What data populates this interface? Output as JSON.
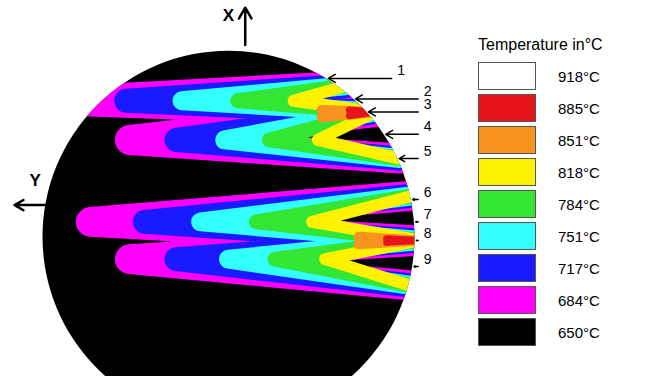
{
  "chart_data": {
    "type": "thermal_image",
    "xlabel": "Y",
    "ylabel": "X",
    "xlim": [
      -1,
      1
    ],
    "ylim": [
      -0.75,
      1
    ],
    "tick_labels": false,
    "colorbar": {
      "label": "Temperature in°C",
      "ticks": [
        {
          "value": 918,
          "label": "918°C"
        },
        {
          "value": 885,
          "label": "885°C"
        },
        {
          "value": 851,
          "label": "851°C"
        },
        {
          "value": 818,
          "label": "818°C"
        },
        {
          "value": 784,
          "label": "784°C"
        },
        {
          "value": 751,
          "label": "751°C"
        },
        {
          "value": 717,
          "label": "717°C"
        },
        {
          "value": 684,
          "label": "684°C"
        },
        {
          "value": 650,
          "label": "650°C"
        }
      ],
      "colors": [
        "#ffffff",
        "#e8141c",
        "#f7941d",
        "#fff200",
        "#33e633",
        "#33ffff",
        "#1a1aff",
        "#ff00ff",
        "#000000"
      ]
    },
    "zones": [
      {
        "temperature": 684,
        "paths": [
          [
            [
              0.63,
              0.81
            ],
            [
              -0.85,
              0.73
            ],
            [
              0.79,
              0.67
            ],
            [
              -0.53,
              0.52
            ],
            [
              0.92,
              0.42
            ]
          ],
          [
            [
              0.99,
              0.22
            ],
            [
              -0.74,
              0.08
            ],
            [
              1.03,
              -0.02
            ],
            [
              -0.53,
              -0.12
            ],
            [
              0.97,
              -0.26
            ]
          ]
        ]
      },
      {
        "temperature": 717,
        "paths": [
          [
            [
              0.63,
              0.81
            ],
            [
              -0.55,
              0.73
            ],
            [
              0.79,
              0.67
            ],
            [
              -0.28,
              0.52
            ],
            [
              0.92,
              0.42
            ]
          ],
          [
            [
              0.99,
              0.22
            ],
            [
              -0.45,
              0.08
            ],
            [
              1.03,
              -0.02
            ],
            [
              -0.28,
              -0.12
            ],
            [
              0.97,
              -0.26
            ]
          ]
        ]
      },
      {
        "temperature": 751,
        "paths": [
          [
            [
              0.63,
              0.81
            ],
            [
              -0.25,
              0.73
            ],
            [
              0.79,
              0.67
            ],
            [
              -0.02,
              0.52
            ],
            [
              0.92,
              0.42
            ]
          ],
          [
            [
              0.99,
              0.22
            ],
            [
              -0.15,
              0.08
            ],
            [
              1.03,
              -0.02
            ],
            [
              0.0,
              -0.12
            ],
            [
              0.97,
              -0.26
            ]
          ]
        ]
      },
      {
        "temperature": 784,
        "paths": [
          [
            [
              0.63,
              0.81
            ],
            [
              0.05,
              0.73
            ],
            [
              0.79,
              0.67
            ],
            [
              0.22,
              0.52
            ],
            [
              0.92,
              0.42
            ]
          ],
          [
            [
              0.99,
              0.22
            ],
            [
              0.15,
              0.08
            ],
            [
              1.03,
              -0.02
            ],
            [
              0.25,
              -0.12
            ],
            [
              0.97,
              -0.26
            ]
          ]
        ]
      },
      {
        "temperature": 818,
        "paths": [
          [
            [
              0.63,
              0.81
            ],
            [
              0.35,
              0.73
            ],
            [
              0.79,
              0.67
            ],
            [
              0.48,
              0.52
            ],
            [
              0.92,
              0.42
            ]
          ],
          [
            [
              0.99,
              0.22
            ],
            [
              0.45,
              0.08
            ],
            [
              1.03,
              -0.02
            ],
            [
              0.52,
              -0.12
            ],
            [
              0.97,
              -0.26
            ]
          ]
        ]
      },
      {
        "temperature": 851,
        "paths": [
          [
            [
              0.5,
              0.68
            ],
            [
              0.79,
              0.67
            ],
            [
              0.5,
              0.64
            ]
          ],
          [
            [
              0.7,
              0.0
            ],
            [
              1.03,
              -0.02
            ],
            [
              0.7,
              -0.04
            ]
          ]
        ]
      },
      {
        "temperature": 885,
        "paths": [
          [
            [
              0.65,
              0.68
            ],
            [
              0.79,
              0.67
            ],
            [
              0.65,
              0.65
            ]
          ],
          [
            [
              0.85,
              -0.01
            ],
            [
              1.03,
              -0.02
            ],
            [
              0.85,
              -0.03
            ]
          ]
        ]
      }
    ],
    "annotations": [
      {
        "text": "1",
        "y": 0.85
      },
      {
        "text": "2",
        "y": 0.74
      },
      {
        "text": "3",
        "y": 0.67
      },
      {
        "text": "4",
        "y": 0.55
      },
      {
        "text": "5",
        "y": 0.42
      },
      {
        "text": "6",
        "y": 0.2
      },
      {
        "text": "7",
        "y": 0.08
      },
      {
        "text": "8",
        "y": -0.02
      },
      {
        "text": "9",
        "y": -0.16
      }
    ]
  }
}
